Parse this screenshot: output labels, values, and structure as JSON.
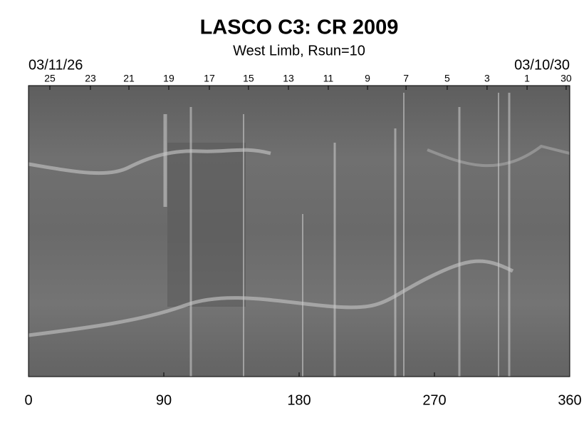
{
  "chart_data": {
    "type": "image",
    "title": "LASCO C3: CR 2009",
    "subtitle": "West Limb, Rsun=10",
    "start_date": "03/11/26",
    "end_date": "03/10/30",
    "xlim": [
      0,
      360
    ],
    "xticks": [
      0,
      90,
      180,
      270,
      360
    ],
    "x2ticks": [
      {
        "value": 14.2,
        "label": "25"
      },
      {
        "value": 41.2,
        "label": "23"
      },
      {
        "value": 66.8,
        "label": "21"
      },
      {
        "value": 93.3,
        "label": "19"
      },
      {
        "value": 120.3,
        "label": "17"
      },
      {
        "value": 146.3,
        "label": "15"
      },
      {
        "value": 172.9,
        "label": "13"
      },
      {
        "value": 199.4,
        "label": "11"
      },
      {
        "value": 225.5,
        "label": "9"
      },
      {
        "value": 251.1,
        "label": "7"
      },
      {
        "value": 278.5,
        "label": "5"
      },
      {
        "value": 305,
        "label": "3"
      },
      {
        "value": 331.6,
        "label": "1"
      },
      {
        "value": 357.6,
        "label": "30"
      }
    ]
  }
}
